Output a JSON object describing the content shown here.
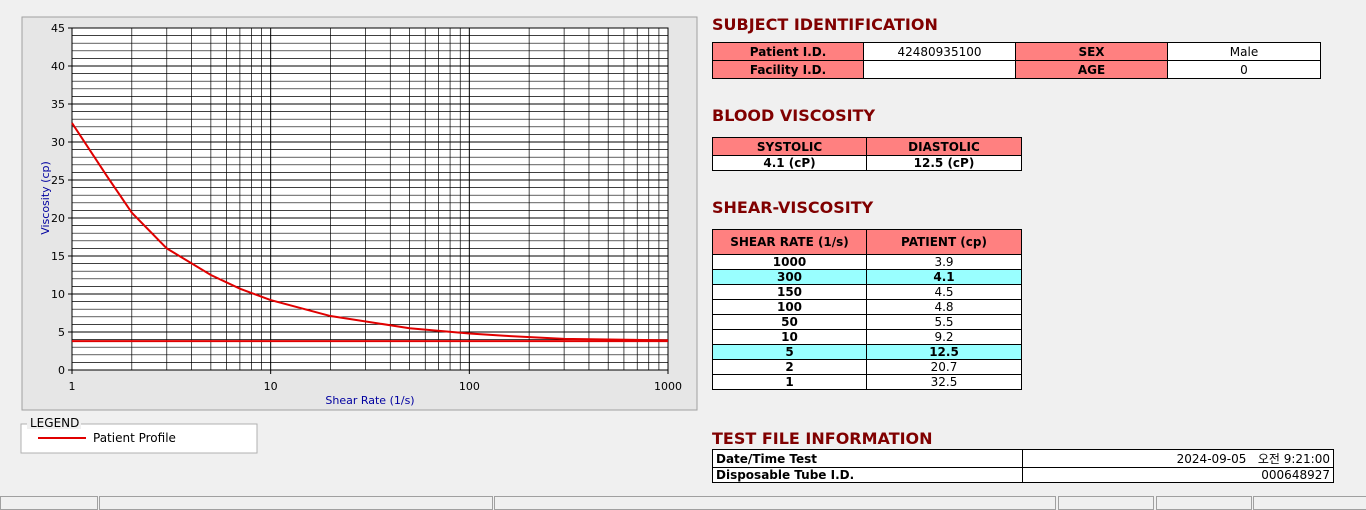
{
  "chart_data": {
    "type": "line",
    "xlabel": "Shear Rate (1/s)",
    "ylabel": "Viscosity (cp)",
    "xscale": "log",
    "xlim": [
      1,
      1000
    ],
    "xticks": [
      1,
      10,
      100,
      1000
    ],
    "ylim": [
      0,
      45
    ],
    "yticks": [
      0,
      5,
      10,
      15,
      20,
      25,
      30,
      35,
      40,
      45
    ],
    "grid": true,
    "minor_grid": true,
    "legend_title": "LEGEND",
    "series": [
      {
        "name": "Patient Profile",
        "color": "#e00000",
        "x": [
          1,
          1.5,
          2,
          3,
          5,
          7,
          10,
          20,
          50,
          100,
          150,
          300,
          1000
        ],
        "values": [
          32.5,
          25.5,
          20.7,
          16,
          12.5,
          10.7,
          9.2,
          7.1,
          5.5,
          4.8,
          4.5,
          4.1,
          3.9
        ]
      },
      {
        "color": "#e00000",
        "x": [
          1,
          1000
        ],
        "values": [
          3.8,
          3.8
        ]
      }
    ]
  },
  "subject_identification": {
    "title": "SUBJECT IDENTIFICATION",
    "rows": [
      [
        "Patient I.D.",
        "42480935100",
        "SEX",
        "Male"
      ],
      [
        "Facility I.D.",
        null,
        "AGE",
        "0"
      ]
    ]
  },
  "blood_viscosity": {
    "title": "BLOOD VISCOSITY",
    "header": [
      "SYSTOLIC",
      "DIASTOLIC"
    ],
    "values": [
      "4.1 (cP)",
      "12.5 (cP)"
    ]
  },
  "shear_viscosity": {
    "title": "SHEAR-VISCOSITY",
    "header": [
      "SHEAR RATE (1/s)",
      "PATIENT (cp)"
    ],
    "rows": [
      [
        "1000",
        "3.9"
      ],
      [
        "300",
        "4.1"
      ],
      [
        "150",
        "4.5"
      ],
      [
        "100",
        "4.8"
      ],
      [
        "50",
        "5.5"
      ],
      [
        "10",
        "9.2"
      ],
      [
        "5",
        "12.5"
      ],
      [
        "2",
        "20.7"
      ],
      [
        "1",
        "32.5"
      ]
    ],
    "highlighted_rows": [
      1,
      6
    ]
  },
  "test_file_information": {
    "title": "TEST FILE INFORMATION",
    "rows": [
      [
        "Date/Time Test",
        "2024-09-05   오전 9:21:00"
      ],
      [
        "Disposable Tube I.D.",
        "000648927"
      ]
    ]
  }
}
